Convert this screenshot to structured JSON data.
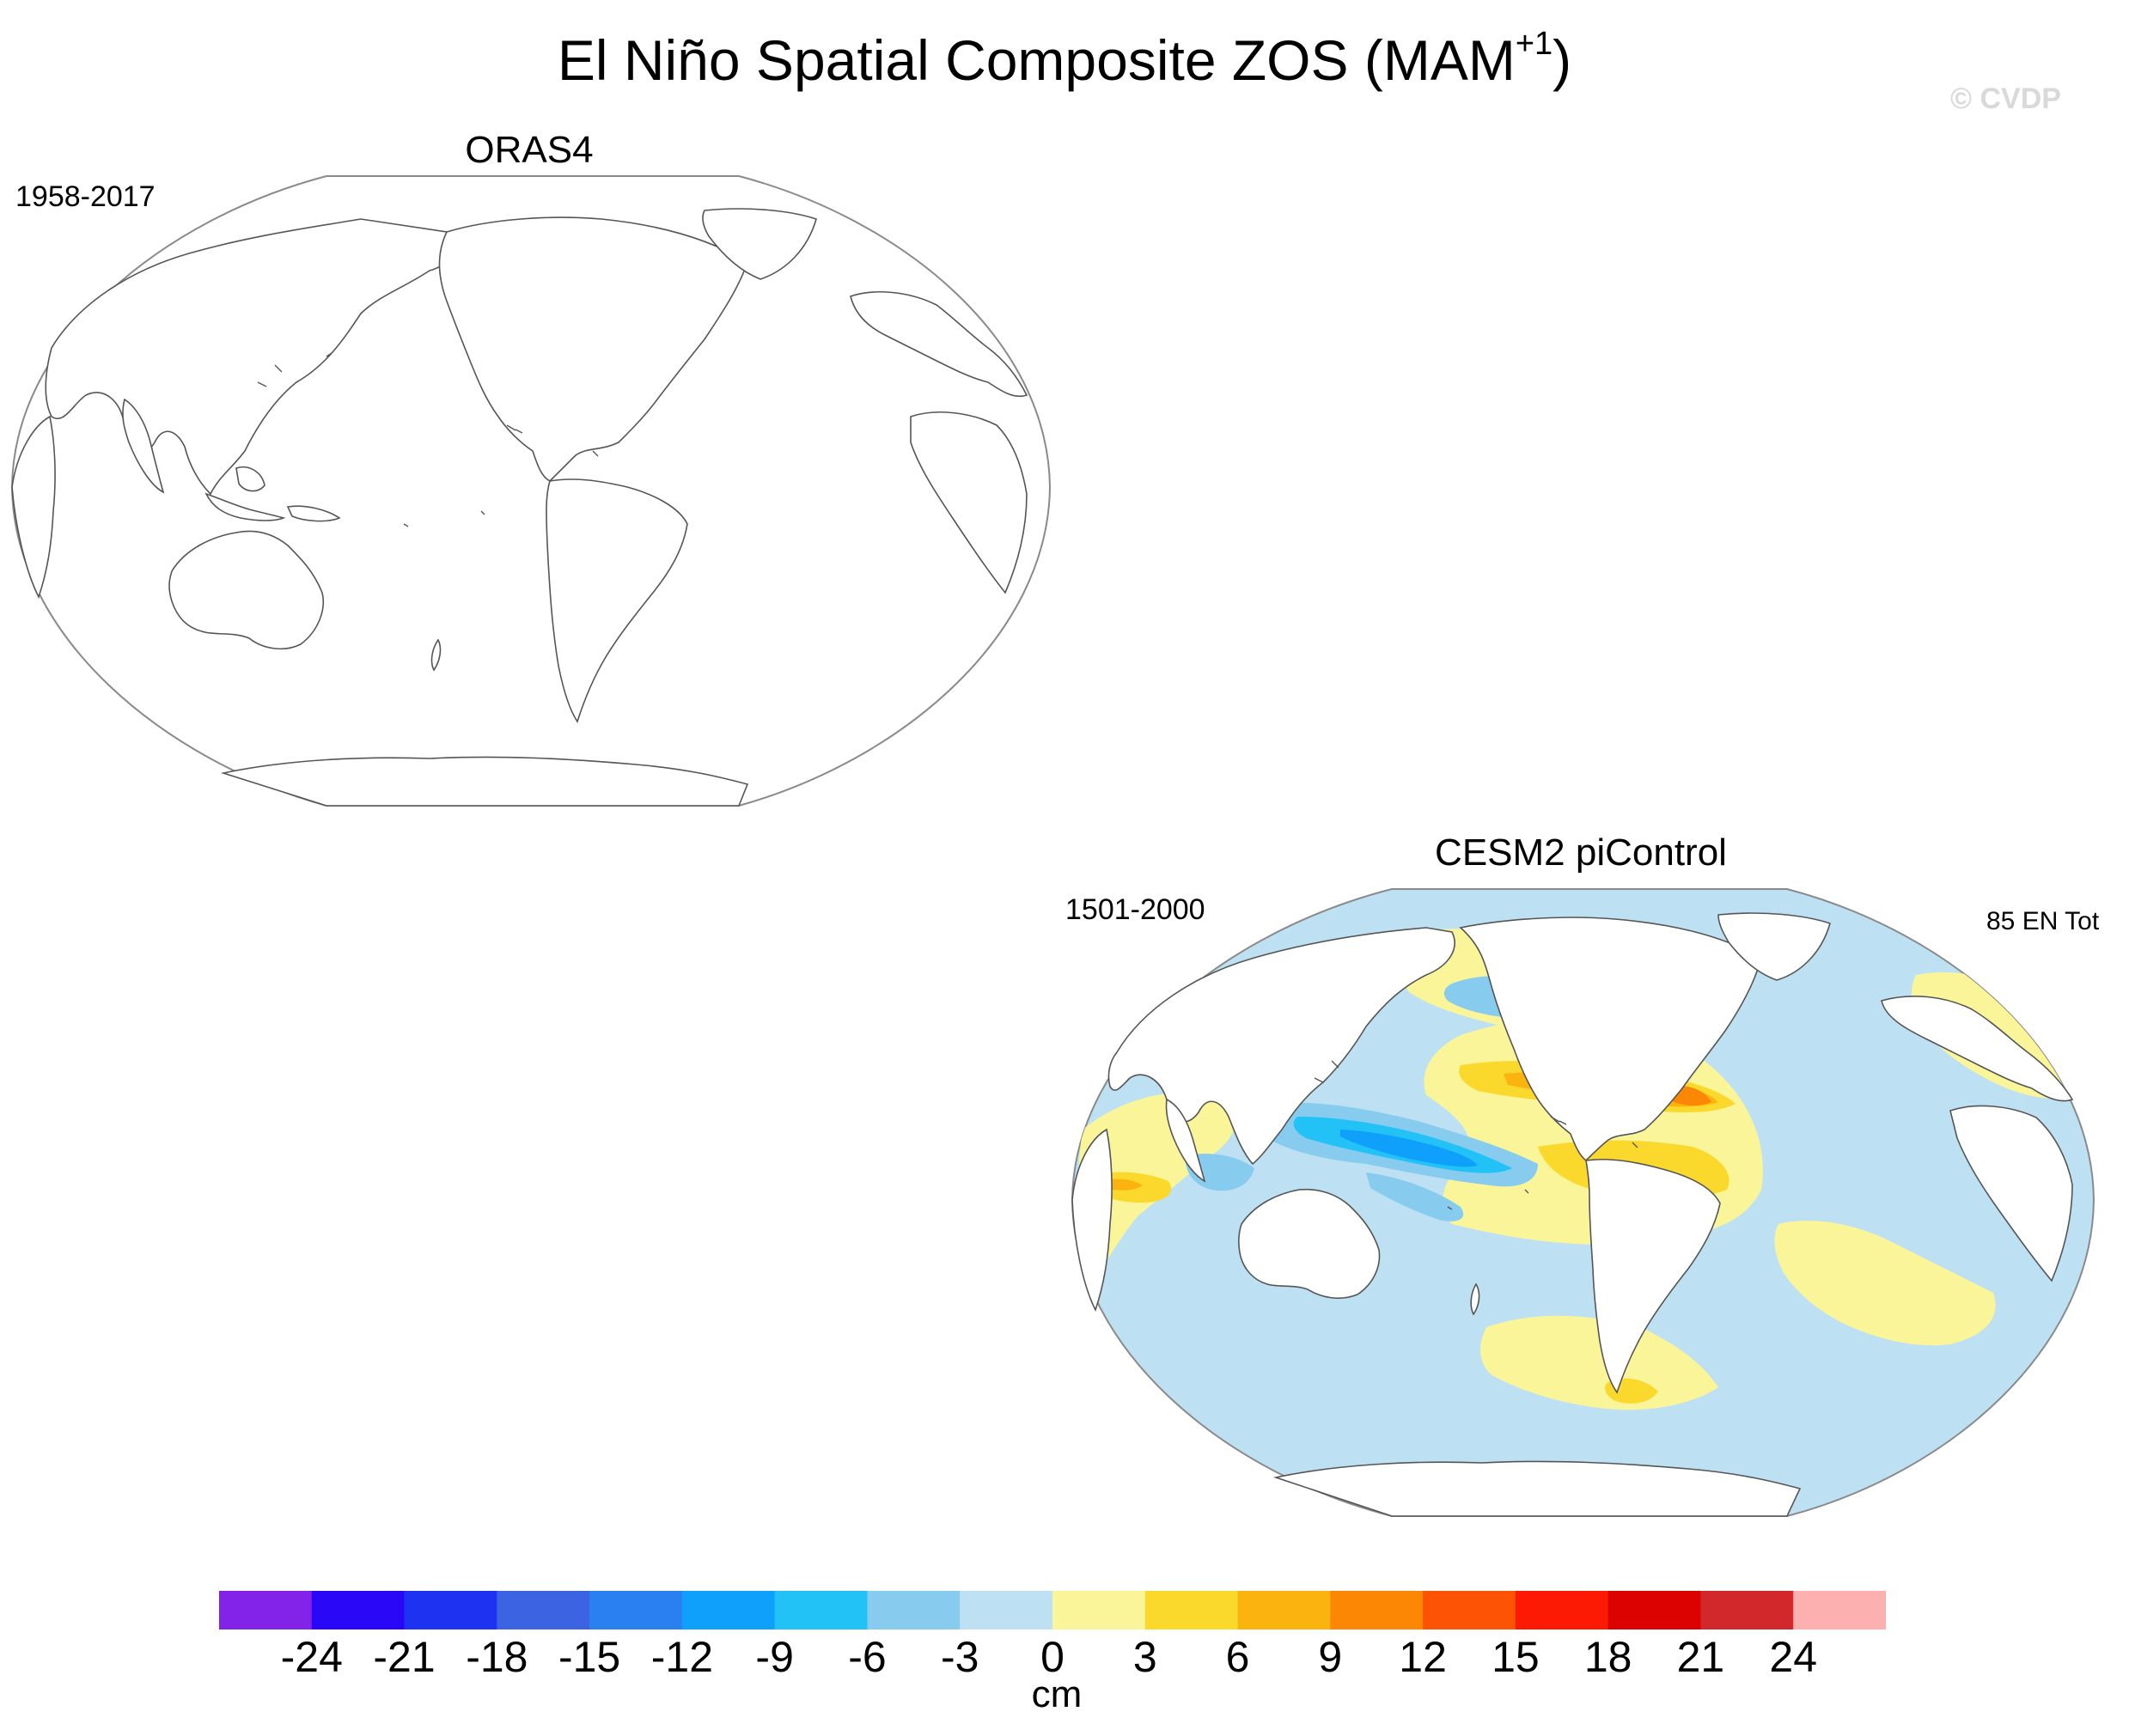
{
  "figure": {
    "title": "El Niño Spatial Composite ZOS (MAM",
    "title_superscript": "+1",
    "title_close": ")",
    "watermark": "© CVDP"
  },
  "panels": [
    {
      "title": "ORAS4",
      "period": "1958-2017",
      "count_label": "",
      "has_data": false
    },
    {
      "title": "CESM2 piControl",
      "period": "1501-2000",
      "count_label": "85 EN Tot",
      "has_data": true
    }
  ],
  "colorbar": {
    "units": "cm",
    "ticks": [
      "-24",
      "-21",
      "-18",
      "-15",
      "-12",
      "-9",
      "-6",
      "-3",
      "0",
      "3",
      "6",
      "9",
      "12",
      "15",
      "18",
      "21",
      "24"
    ],
    "colors": [
      "#8322e8",
      "#2b07f7",
      "#1e33f1",
      "#3c64e2",
      "#2a80f1",
      "#0fa0fb",
      "#22c1f6",
      "#87cbee",
      "#bde1f3",
      "#fbf59a",
      "#fbd92c",
      "#fbb30f",
      "#fb8704",
      "#fc5304",
      "#fd1a05",
      "#dc0202",
      "#d2282b",
      "#fdb0b0"
    ]
  },
  "colors": {
    "land": "#ffffff",
    "coastline": "#555555",
    "ocean_negative_small": "#bde1f3",
    "ocean_positive_small": "#fbf59a"
  }
}
